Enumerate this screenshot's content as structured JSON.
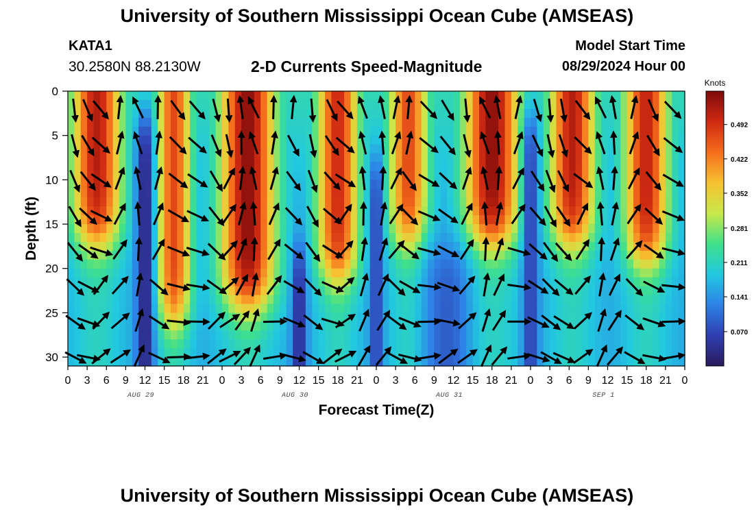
{
  "header": {
    "title": "University of Southern Mississippi Ocean Cube (AMSEAS)",
    "station_id": "KATA1",
    "coordinates": "30.2580N  88.2130W",
    "chart_title": "2-D Currents Speed-Magnitude",
    "model_start_label": "Model Start Time",
    "model_start_value": "08/29/2024 Hour 00"
  },
  "footer": {
    "title": "University of Southern Mississippi Ocean Cube (AMSEAS)"
  },
  "chart_data": {
    "type": "heatmap",
    "title": "2-D Currents Speed-Magnitude",
    "xlabel": "Forecast Time(Z)",
    "ylabel": "Depth (ft)",
    "x_range_hours": [
      0,
      96
    ],
    "y_range_ft": [
      0,
      31
    ],
    "y_reversed": true,
    "x_ticks": [
      {
        "hour": 0,
        "label": "0"
      },
      {
        "hour": 3,
        "label": "3"
      },
      {
        "hour": 6,
        "label": "6"
      },
      {
        "hour": 9,
        "label": "9"
      },
      {
        "hour": 12,
        "label": "12"
      },
      {
        "hour": 15,
        "label": "15"
      },
      {
        "hour": 18,
        "label": "18"
      },
      {
        "hour": 21,
        "label": "21"
      },
      {
        "hour": 24,
        "label": "0"
      },
      {
        "hour": 27,
        "label": "3"
      },
      {
        "hour": 30,
        "label": "6"
      },
      {
        "hour": 33,
        "label": "9"
      },
      {
        "hour": 36,
        "label": "12"
      },
      {
        "hour": 39,
        "label": "15"
      },
      {
        "hour": 42,
        "label": "18"
      },
      {
        "hour": 45,
        "label": "21"
      },
      {
        "hour": 48,
        "label": "0"
      },
      {
        "hour": 51,
        "label": "3"
      },
      {
        "hour": 54,
        "label": "6"
      },
      {
        "hour": 57,
        "label": "9"
      },
      {
        "hour": 60,
        "label": "12"
      },
      {
        "hour": 63,
        "label": "15"
      },
      {
        "hour": 66,
        "label": "18"
      },
      {
        "hour": 69,
        "label": "21"
      },
      {
        "hour": 72,
        "label": "0"
      },
      {
        "hour": 75,
        "label": "3"
      },
      {
        "hour": 78,
        "label": "6"
      },
      {
        "hour": 81,
        "label": "9"
      },
      {
        "hour": 84,
        "label": "12"
      },
      {
        "hour": 87,
        "label": "15"
      },
      {
        "hour": 90,
        "label": "18"
      },
      {
        "hour": 93,
        "label": "21"
      },
      {
        "hour": 96,
        "label": "0"
      }
    ],
    "y_ticks": [
      0,
      5,
      10,
      15,
      20,
      25,
      30
    ],
    "day_labels": [
      {
        "hour": 12,
        "label": "AUG 29"
      },
      {
        "hour": 36,
        "label": "AUG 30"
      },
      {
        "hour": 60,
        "label": "AUG 31"
      },
      {
        "hour": 84,
        "label": "SEP 1"
      }
    ],
    "colorbar": {
      "unit": "Knots",
      "range": [
        0,
        0.56
      ],
      "ticks": [
        0.07,
        0.141,
        0.211,
        0.281,
        0.352,
        0.422,
        0.492
      ],
      "tick_labels": [
        "0.070",
        "0.141",
        "0.211",
        "0.281",
        "0.352",
        "0.422",
        "0.492"
      ],
      "colors": [
        "#2a1a5e",
        "#2f3fb0",
        "#2e82e6",
        "#22c8e0",
        "#3fe08a",
        "#c9e84a",
        "#f7c131",
        "#f46d1c",
        "#cf2a12",
        "#7e0a0a"
      ]
    },
    "speed_peaks": [
      {
        "hour": 4.5,
        "width_h": 3.8,
        "depth_bottom_ft": 17,
        "peak_knots": 0.47
      },
      {
        "hour": 16.5,
        "width_h": 2.6,
        "depth_bottom_ft": 26,
        "peak_knots": 0.42
      },
      {
        "hour": 28,
        "width_h": 4.2,
        "depth_bottom_ft": 24,
        "peak_knots": 0.5
      },
      {
        "hour": 42,
        "width_h": 3.2,
        "depth_bottom_ft": 21,
        "peak_knots": 0.45
      },
      {
        "hour": 53,
        "width_h": 3.0,
        "depth_bottom_ft": 17,
        "peak_knots": 0.42
      },
      {
        "hour": 66,
        "width_h": 4.2,
        "depth_bottom_ft": 17,
        "peak_knots": 0.5
      },
      {
        "hour": 78.5,
        "width_h": 3.5,
        "depth_bottom_ft": 17,
        "peak_knots": 0.47
      },
      {
        "hour": 90,
        "width_h": 3.4,
        "depth_bottom_ft": 19,
        "peak_knots": 0.46
      }
    ],
    "speed_troughs": [
      {
        "hour": 12,
        "width_h": 1.3,
        "depth_top_ft": 3,
        "min_knots": 0.02
      },
      {
        "hour": 36,
        "width_h": 1.1,
        "depth_top_ft": 18,
        "min_knots": 0.03
      },
      {
        "hour": 48,
        "width_h": 1.0,
        "depth_top_ft": 8,
        "min_knots": 0.06
      },
      {
        "hour": 59,
        "width_h": 3.5,
        "depth_top_ft": 18,
        "min_knots": 0.09
      },
      {
        "hour": 72,
        "width_h": 1.2,
        "depth_top_ft": 3,
        "min_knots": 0.06
      }
    ],
    "vectors": {
      "hours": [
        1,
        3,
        5,
        8,
        11,
        14,
        17,
        20,
        23,
        25,
        27,
        29,
        32,
        35,
        38,
        41,
        43,
        46,
        49,
        51,
        53,
        56,
        59,
        62,
        65,
        67,
        70,
        73,
        75,
        77,
        80,
        83,
        85,
        88,
        91,
        94
      ],
      "depths_ft": [
        2,
        6,
        10,
        14,
        18,
        22,
        26,
        30
      ],
      "note": "direction in degrees clockwise from north (flow toward)"
    }
  }
}
